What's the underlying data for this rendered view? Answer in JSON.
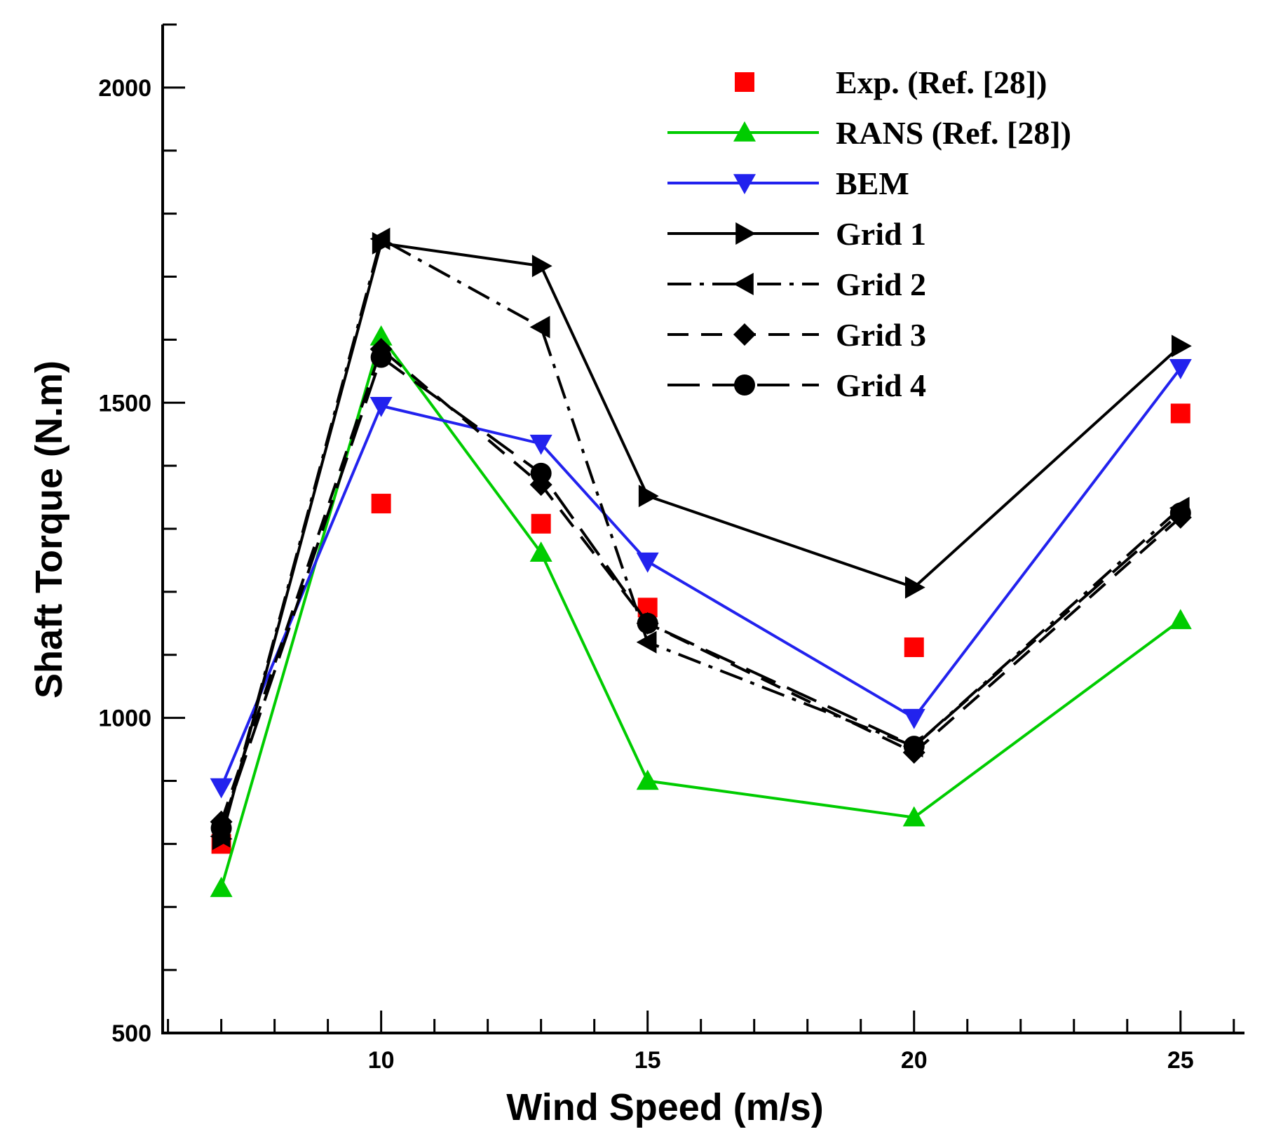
{
  "chart_data": {
    "type": "line",
    "title": "",
    "xlabel": "Wind Speed (m/s)",
    "ylabel": "Shaft Torque (N.m)",
    "xlim": [
      5.9,
      26.2
    ],
    "ylim": [
      500,
      2100
    ],
    "x_ticks": [
      10,
      15,
      20,
      25
    ],
    "x_tick_labels": [
      "10",
      "15",
      "20",
      "25"
    ],
    "x_minor_step": 1,
    "y_ticks": [
      500,
      1000,
      1500,
      2000
    ],
    "y_tick_labels": [
      "500",
      "1000",
      "1500",
      "2000"
    ],
    "y_minor_step": 100,
    "grid": false,
    "legend_position": "top-right",
    "x": [
      7,
      10,
      13,
      15,
      20,
      25
    ],
    "series": [
      {
        "name": "Exp. (Ref. [28])",
        "color": "#ff0000",
        "line": "none",
        "marker": "square",
        "values": [
          800,
          1340,
          1308,
          1175,
          1112,
          1483
        ]
      },
      {
        "name": "RANS (Ref. [28])",
        "color": "#00cc00",
        "line": "solid",
        "marker": "triangle-up",
        "values": [
          730,
          1605,
          1262,
          900,
          842,
          1155
        ]
      },
      {
        "name": "BEM",
        "color": "#2222ee",
        "line": "solid",
        "marker": "triangle-down",
        "values": [
          890,
          1495,
          1435,
          1248,
          1000,
          1555
        ]
      },
      {
        "name": "Grid 1",
        "color": "#000000",
        "line": "solid",
        "marker": "triangle-right",
        "values": [
          808,
          1753,
          1717,
          1352,
          1207,
          1590
        ]
      },
      {
        "name": "Grid 2",
        "color": "#000000",
        "line": "dashdot",
        "marker": "triangle-left",
        "values": [
          812,
          1760,
          1620,
          1120,
          955,
          1333
        ]
      },
      {
        "name": "Grid 3",
        "color": "#000000",
        "line": "dashed",
        "marker": "diamond",
        "values": [
          835,
          1585,
          1370,
          1150,
          945,
          1318
        ]
      },
      {
        "name": "Grid 4",
        "color": "#000000",
        "line": "longdash",
        "marker": "circle",
        "values": [
          825,
          1572,
          1388,
          1150,
          955,
          1325
        ]
      }
    ]
  }
}
